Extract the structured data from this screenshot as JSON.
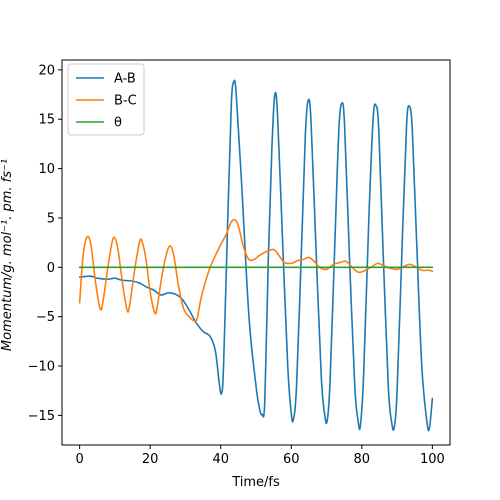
{
  "chart_data": {
    "type": "line",
    "title": "",
    "xlabel": "Time/fs",
    "ylabel": "Momentum/g. mol⁻¹. pm. fs⁻¹",
    "xlim": [
      -5,
      105
    ],
    "ylim": [
      -18,
      21
    ],
    "xticks": [
      "0",
      "20",
      "40",
      "60",
      "80",
      "100"
    ],
    "yticks": [
      "−15",
      "−10",
      "−5",
      "0",
      "5",
      "10",
      "15",
      "20"
    ],
    "grid": false,
    "legend_position": "top-left",
    "series": [
      {
        "name": "A-B",
        "color": "#1f77b4",
        "points": [
          [
            0,
            -1.0
          ],
          [
            3,
            -0.9
          ],
          [
            5,
            -1.1
          ],
          [
            8,
            -1.2
          ],
          [
            10,
            -1.1
          ],
          [
            12,
            -1.3
          ],
          [
            15,
            -1.4
          ],
          [
            17,
            -1.6
          ],
          [
            19,
            -2.0
          ],
          [
            21,
            -2.3
          ],
          [
            23,
            -2.8
          ],
          [
            25,
            -2.6
          ],
          [
            27,
            -2.7
          ],
          [
            29,
            -3.2
          ],
          [
            31,
            -4.3
          ],
          [
            33,
            -5.6
          ],
          [
            35,
            -6.5
          ],
          [
            37,
            -7.0
          ],
          [
            38.5,
            -8.5
          ],
          [
            39.5,
            -11.5
          ],
          [
            40.2,
            -12.8
          ],
          [
            40.8,
            -10.0
          ],
          [
            42,
            5.0
          ],
          [
            43,
            16.5
          ],
          [
            43.7,
            18.8
          ],
          [
            44.4,
            17.5
          ],
          [
            46,
            8.0
          ],
          [
            48,
            -5.0
          ],
          [
            50,
            -12.0
          ],
          [
            51,
            -14.3
          ],
          [
            51.7,
            -14.9
          ],
          [
            52.5,
            -13.5
          ],
          [
            53.5,
            1.0
          ],
          [
            54.5,
            12.0
          ],
          [
            55.3,
            17.4
          ],
          [
            56.1,
            15.5
          ],
          [
            57.5,
            3.0
          ],
          [
            59,
            -10.0
          ],
          [
            60,
            -14.8
          ],
          [
            60.6,
            -15.4
          ],
          [
            61.5,
            -12.0
          ],
          [
            63,
            3.0
          ],
          [
            64,
            13.5
          ],
          [
            64.8,
            16.9
          ],
          [
            65.6,
            14.8
          ],
          [
            67,
            2.0
          ],
          [
            68.5,
            -11.0
          ],
          [
            69.5,
            -15.0
          ],
          [
            70.2,
            -15.5
          ],
          [
            71,
            -11.5
          ],
          [
            72.5,
            4.0
          ],
          [
            73.5,
            14.0
          ],
          [
            74.3,
            16.6
          ],
          [
            75.1,
            14.5
          ],
          [
            76.5,
            1.0
          ],
          [
            78,
            -12.0
          ],
          [
            79,
            -15.7
          ],
          [
            79.6,
            -16.0
          ],
          [
            80.5,
            -11.0
          ],
          [
            82,
            5.0
          ],
          [
            83.2,
            15.0
          ],
          [
            84,
            16.4
          ],
          [
            84.8,
            14.0
          ],
          [
            86,
            2.0
          ],
          [
            87.5,
            -12.0
          ],
          [
            88.5,
            -15.8
          ],
          [
            89.2,
            -16.2
          ],
          [
            90,
            -12.5
          ],
          [
            91.5,
            3.0
          ],
          [
            92.7,
            14.5
          ],
          [
            93.5,
            16.3
          ],
          [
            94.3,
            14.0
          ],
          [
            95.5,
            3.0
          ],
          [
            97,
            -10.0
          ],
          [
            98.5,
            -15.8
          ],
          [
            99.2,
            -16.2
          ],
          [
            100,
            -13.3
          ]
        ]
      },
      {
        "name": "B-C",
        "color": "#ff7f0e",
        "points": [
          [
            0,
            -3.6
          ],
          [
            0.8,
            0.5
          ],
          [
            1.6,
            2.6
          ],
          [
            2.5,
            3.1
          ],
          [
            3.3,
            2.0
          ],
          [
            4.5,
            -1.5
          ],
          [
            5.8,
            -4.2
          ],
          [
            6.6,
            -3.5
          ],
          [
            8,
            0.0
          ],
          [
            9.3,
            2.7
          ],
          [
            10.1,
            2.9
          ],
          [
            11,
            1.5
          ],
          [
            12.3,
            -2.0
          ],
          [
            13.5,
            -4.4
          ],
          [
            14.2,
            -3.8
          ],
          [
            15.5,
            -0.5
          ],
          [
            17,
            2.6
          ],
          [
            17.8,
            2.5
          ],
          [
            18.8,
            0.8
          ],
          [
            20,
            -2.5
          ],
          [
            21.3,
            -4.6
          ],
          [
            22,
            -4.0
          ],
          [
            23.5,
            -0.5
          ],
          [
            25,
            1.8
          ],
          [
            25.9,
            2.1
          ],
          [
            26.8,
            1.0
          ],
          [
            28,
            -1.8
          ],
          [
            29.5,
            -4.2
          ],
          [
            31,
            -5.0
          ],
          [
            32.3,
            -5.4
          ],
          [
            33.3,
            -5.2
          ],
          [
            34.5,
            -3.0
          ],
          [
            36.5,
            -0.5
          ],
          [
            38.5,
            1.2
          ],
          [
            40,
            2.3
          ],
          [
            41.5,
            3.3
          ],
          [
            43,
            4.6
          ],
          [
            44,
            4.8
          ],
          [
            45,
            4.2
          ],
          [
            46.5,
            2.0
          ],
          [
            48,
            0.8
          ],
          [
            49.5,
            0.8
          ],
          [
            51,
            1.2
          ],
          [
            53,
            1.6
          ],
          [
            55,
            1.8
          ],
          [
            56.5,
            1.2
          ],
          [
            58,
            0.5
          ],
          [
            60,
            0.4
          ],
          [
            62,
            0.7
          ],
          [
            63.5,
            0.8
          ],
          [
            65,
            1.0
          ],
          [
            66.5,
            0.6
          ],
          [
            68,
            0.0
          ],
          [
            70,
            -0.2
          ],
          [
            72,
            0.3
          ],
          [
            74,
            0.5
          ],
          [
            75.5,
            0.6
          ],
          [
            77,
            0.1
          ],
          [
            79,
            -0.5
          ],
          [
            81,
            -0.3
          ],
          [
            83,
            0.1
          ],
          [
            84.5,
            0.4
          ],
          [
            86,
            0.2
          ],
          [
            88,
            -0.1
          ],
          [
            90,
            -0.2
          ],
          [
            92,
            0.1
          ],
          [
            93.5,
            0.3
          ],
          [
            95,
            0.1
          ],
          [
            97,
            -0.3
          ],
          [
            99,
            -0.3
          ],
          [
            100,
            -0.4
          ]
        ]
      },
      {
        "name": "θ",
        "color": "#2ca02c",
        "points": [
          [
            0,
            0.0
          ],
          [
            100,
            0.0
          ]
        ]
      }
    ]
  }
}
